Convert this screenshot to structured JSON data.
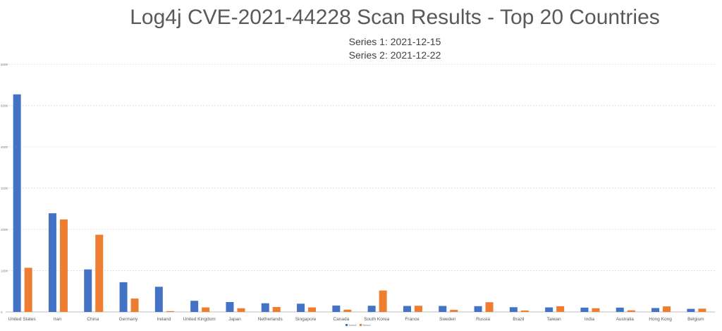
{
  "chart_data": {
    "type": "bar",
    "title": "Log4j CVE-2021-44228 Scan Results - Top 20 Countries",
    "subtitle_lines": [
      "Series 1: 2021-12-15",
      "Series 2: 2021-12-22"
    ],
    "xlabel": "",
    "ylabel": "",
    "ylim": [
      0,
      6000
    ],
    "yticks": [
      "6000",
      "5000",
      "4000",
      "3000",
      "2000",
      "1000",
      "0"
    ],
    "grid": true,
    "legend_position": "bottom",
    "categories": [
      "United States",
      "Iran",
      "China",
      "Germany",
      "Ireland",
      "United Kingdom",
      "Japan",
      "Netherlands",
      "Singapore",
      "Canada",
      "South Korea",
      "France",
      "Sweden",
      "Russia",
      "Brazil",
      "Taiwan",
      "India",
      "Australia",
      "Hong Kong",
      "Belgium"
    ],
    "series": [
      {
        "name": "Series1",
        "color": "#4472c4",
        "values": [
          5270,
          2390,
          1030,
          720,
          610,
          270,
          240,
          210,
          200,
          155,
          150,
          145,
          145,
          140,
          115,
          110,
          105,
          105,
          95,
          75
        ]
      },
      {
        "name": "Series2",
        "color": "#ed7d31",
        "values": [
          1070,
          2240,
          1870,
          325,
          20,
          110,
          90,
          120,
          110,
          55,
          520,
          150,
          50,
          235,
          35,
          140,
          90,
          40,
          135,
          80
        ]
      }
    ]
  }
}
